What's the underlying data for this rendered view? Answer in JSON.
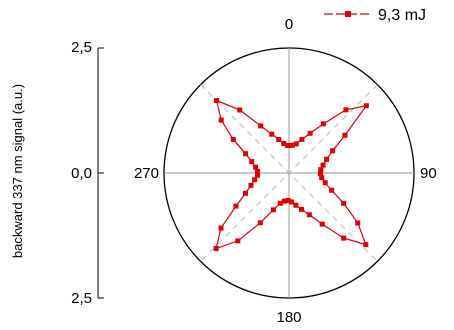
{
  "chart_data": {
    "type": "polar-line",
    "ylabel": "backward 337 nm signal (a.u.)",
    "radial_ticks": [
      "2,5",
      "0,0",
      "2,5"
    ],
    "angle_labels": [
      "0",
      "90",
      "180",
      "270"
    ],
    "angle_unit": "degrees",
    "rlim": [
      0,
      2.5
    ],
    "grid": true,
    "legend_position": "top-right",
    "series": [
      {
        "name": "9,3 mJ",
        "color": "#e00000",
        "marker": "square",
        "angles": [
          0,
          7,
          14,
          21,
          28,
          35,
          42,
          49,
          56,
          63,
          70,
          77,
          84,
          91,
          98,
          105,
          112,
          119,
          126,
          133,
          140,
          147,
          154,
          161,
          168,
          175,
          182,
          189,
          196,
          203,
          210,
          217,
          224,
          231,
          238,
          245,
          252,
          259,
          266,
          273,
          280,
          287,
          294,
          301,
          308,
          315,
          322,
          329,
          336,
          343,
          350,
          357
        ],
        "values": [
          0.55,
          0.56,
          0.6,
          0.72,
          0.9,
          1.2,
          1.7,
          2.05,
          1.35,
          0.98,
          0.8,
          0.7,
          0.64,
          0.63,
          0.66,
          0.75,
          0.92,
          1.25,
          1.7,
          2.1,
          1.7,
          1.22,
          0.93,
          0.77,
          0.66,
          0.58,
          0.55,
          0.57,
          0.63,
          0.8,
          1.15,
          1.7,
          2.1,
          1.75,
          1.25,
          0.96,
          0.8,
          0.7,
          0.63,
          0.63,
          0.68,
          0.78,
          0.95,
          1.3,
          1.72,
          2.05,
          1.6,
          1.1,
          0.85,
          0.7,
          0.6,
          0.55
        ]
      }
    ]
  }
}
